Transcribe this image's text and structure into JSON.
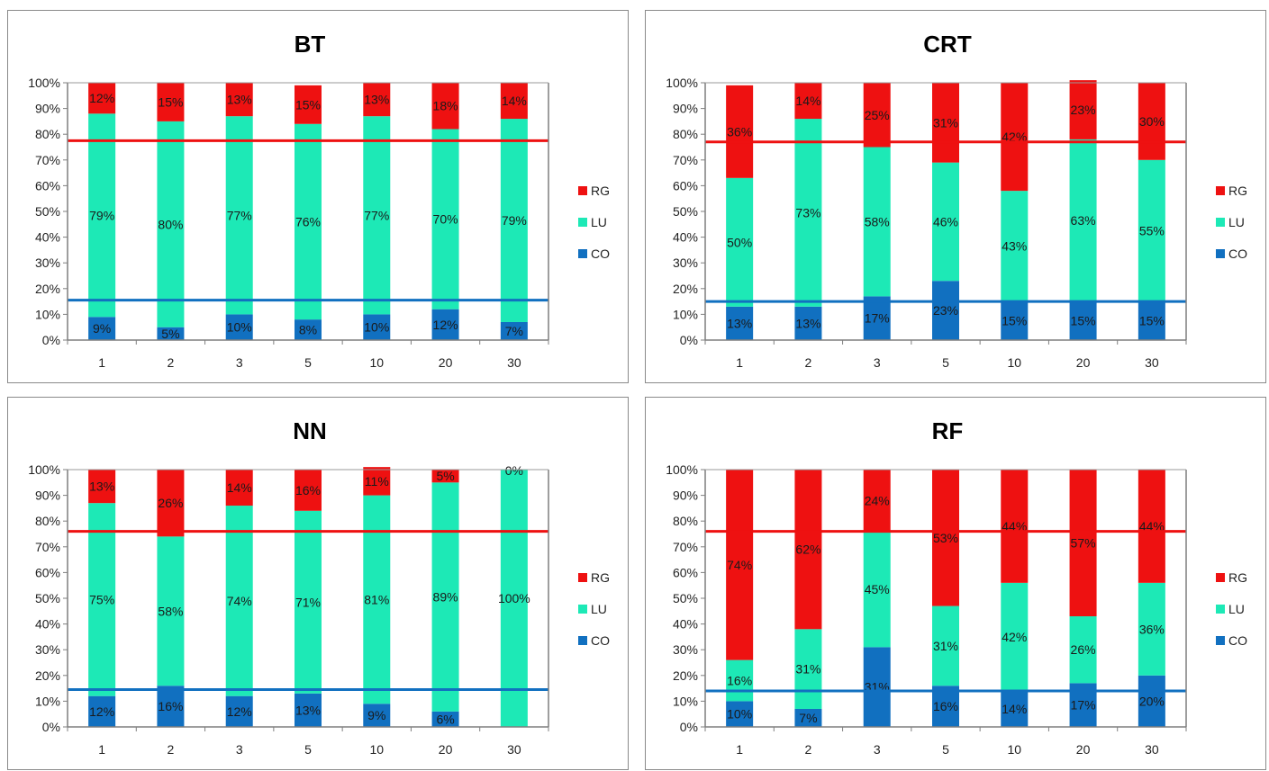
{
  "colors": {
    "RG": "#ee1111",
    "LU": "#1de9b6",
    "CO": "#1170c0",
    "grid": "#9a9a9a",
    "axis": "#7f7f7f"
  },
  "chart_data": [
    {
      "type": "bar",
      "stacked": true,
      "title": "BT",
      "categories": [
        "1",
        "2",
        "3",
        "5",
        "10",
        "20",
        "30"
      ],
      "ylim": [
        0,
        100
      ],
      "ytick_labels": [
        "0%",
        "10%",
        "20%",
        "30%",
        "40%",
        "50%",
        "60%",
        "70%",
        "80%",
        "90%",
        "100%"
      ],
      "legend": [
        "RG",
        "LU",
        "CO"
      ],
      "legend_position": "right",
      "series": [
        {
          "name": "CO",
          "values": [
            9,
            5,
            10,
            8,
            10,
            12,
            7
          ],
          "labels": [
            "9%",
            "5%",
            "10%",
            "8%",
            "10%",
            "12%",
            "7%"
          ]
        },
        {
          "name": "LU",
          "values": [
            79,
            80,
            77,
            76,
            77,
            70,
            79
          ],
          "labels": [
            "79%",
            "80%",
            "77%",
            "76%",
            "77%",
            "70%",
            "79%"
          ]
        },
        {
          "name": "RG",
          "values": [
            12,
            15,
            13,
            15,
            13,
            18,
            14
          ],
          "labels": [
            "12%",
            "15%",
            "13%",
            "15%",
            "13%",
            "18%",
            "14%"
          ]
        }
      ],
      "reference_lines": [
        {
          "color": "RG",
          "value": 77.5
        },
        {
          "color": "CO",
          "value": 15.5
        }
      ]
    },
    {
      "type": "bar",
      "stacked": true,
      "title": "CRT",
      "categories": [
        "1",
        "2",
        "3",
        "5",
        "10",
        "20",
        "30"
      ],
      "ylim": [
        0,
        100
      ],
      "ytick_labels": [
        "0%",
        "10%",
        "20%",
        "30%",
        "40%",
        "50%",
        "60%",
        "70%",
        "80%",
        "90%",
        "100%"
      ],
      "legend": [
        "RG",
        "LU",
        "CO"
      ],
      "legend_position": "right",
      "series": [
        {
          "name": "CO",
          "values": [
            13,
            13,
            17,
            23,
            15,
            15,
            15
          ],
          "labels": [
            "13%",
            "13%",
            "17%",
            "23%",
            "15%",
            "15%",
            "15%"
          ]
        },
        {
          "name": "LU",
          "values": [
            50,
            73,
            58,
            46,
            43,
            63,
            55
          ],
          "labels": [
            "50%",
            "73%",
            "58%",
            "46%",
            "43%",
            "63%",
            "55%"
          ]
        },
        {
          "name": "RG",
          "values": [
            36,
            14,
            25,
            31,
            42,
            23,
            30
          ],
          "labels": [
            "36%",
            "14%",
            "25%",
            "31%",
            "42%",
            "23%",
            "30%"
          ]
        }
      ],
      "reference_lines": [
        {
          "color": "RG",
          "value": 77
        },
        {
          "color": "CO",
          "value": 15
        }
      ]
    },
    {
      "type": "bar",
      "stacked": true,
      "title": "NN",
      "categories": [
        "1",
        "2",
        "3",
        "5",
        "10",
        "20",
        "30"
      ],
      "ylim": [
        0,
        100
      ],
      "ytick_labels": [
        "0%",
        "10%",
        "20%",
        "30%",
        "40%",
        "50%",
        "60%",
        "70%",
        "80%",
        "90%",
        "100%"
      ],
      "legend": [
        "RG",
        "LU",
        "CO"
      ],
      "legend_position": "right",
      "series": [
        {
          "name": "CO",
          "values": [
            12,
            16,
            12,
            13,
            9,
            6,
            0
          ],
          "labels": [
            "12%",
            "16%",
            "12%",
            "13%",
            "9%",
            "6%",
            "0%"
          ]
        },
        {
          "name": "LU",
          "values": [
            75,
            58,
            74,
            71,
            81,
            89,
            100
          ],
          "labels": [
            "75%",
            "58%",
            "74%",
            "71%",
            "81%",
            "89%",
            "100%"
          ]
        },
        {
          "name": "RG",
          "values": [
            13,
            26,
            14,
            16,
            11,
            5,
            0
          ],
          "labels": [
            "13%",
            "26%",
            "14%",
            "16%",
            "11%",
            "5%",
            "0%"
          ]
        }
      ],
      "reference_lines": [
        {
          "color": "RG",
          "value": 76
        },
        {
          "color": "CO",
          "value": 14.5
        }
      ]
    },
    {
      "type": "bar",
      "stacked": true,
      "title": "RF",
      "categories": [
        "1",
        "2",
        "3",
        "5",
        "10",
        "20",
        "30"
      ],
      "ylim": [
        0,
        100
      ],
      "ytick_labels": [
        "0%",
        "10%",
        "20%",
        "30%",
        "40%",
        "50%",
        "60%",
        "70%",
        "80%",
        "90%",
        "100%"
      ],
      "legend": [
        "RG",
        "LU",
        "CO"
      ],
      "legend_position": "right",
      "series": [
        {
          "name": "CO",
          "values": [
            10,
            7,
            31,
            16,
            14,
            17,
            20
          ],
          "labels": [
            "10%",
            "7%",
            "31%",
            "16%",
            "14%",
            "17%",
            "20%"
          ]
        },
        {
          "name": "LU",
          "values": [
            16,
            31,
            45,
            31,
            42,
            26,
            36
          ],
          "labels": [
            "16%",
            "31%",
            "45%",
            "31%",
            "42%",
            "26%",
            "36%"
          ]
        },
        {
          "name": "RG",
          "values": [
            74,
            62,
            24,
            53,
            44,
            57,
            44
          ],
          "labels": [
            "74%",
            "62%",
            "24%",
            "53%",
            "44%",
            "57%",
            "44%"
          ]
        }
      ],
      "reference_lines": [
        {
          "color": "RG",
          "value": 76
        },
        {
          "color": "CO",
          "value": 14
        }
      ]
    }
  ]
}
